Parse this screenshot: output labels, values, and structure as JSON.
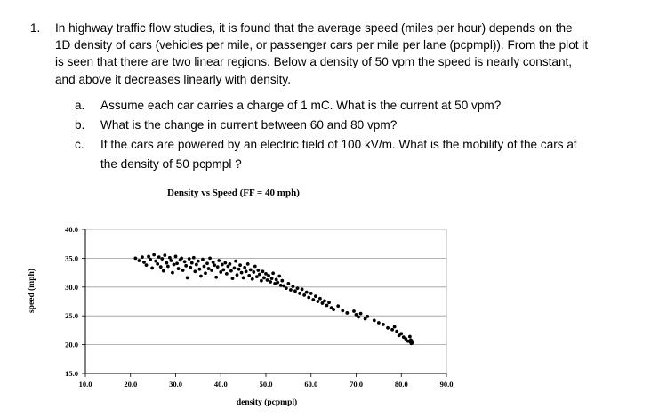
{
  "problem": {
    "number": "1.",
    "lines": [
      "In highway traffic flow studies, it is found that the average speed (miles per hour) depends on the",
      "1D density of cars (vehicles per mile, or passenger cars per mile per lane (pcpmpl)). From the plot it",
      "is seen that there are two linear regions. Below a density of 50 vpm the speed is nearly constant,",
      "and above it decreases linearly with density."
    ],
    "parts": [
      {
        "letter": "a.",
        "lines": [
          "Assume each car carries a charge of 1 mC. What is the current at 50 vpm?"
        ]
      },
      {
        "letter": "b.",
        "lines": [
          "What is the change in current between 60 and 80 vpm?"
        ]
      },
      {
        "letter": "c.",
        "lines": [
          "If the cars are powered by an electric field of 100 kV/m. What is the mobility of the cars at",
          "the density of 50 pcpmpl ?"
        ]
      }
    ]
  },
  "chart_data": {
    "type": "scatter",
    "title": "Density vs Speed (FF = 40 mph)",
    "xlabel": "density (pcpmpl)",
    "ylabel": "speed (mph)",
    "xlim": [
      10,
      90
    ],
    "ylim": [
      15,
      40
    ],
    "xticks": [
      "10.0",
      "20.0",
      "30.0",
      "40.0",
      "50.0",
      "60.0",
      "70.0",
      "80.0",
      "90.0"
    ],
    "yticks": [
      "15.0",
      "20.0",
      "25.0",
      "30.0",
      "35.0",
      "40.0"
    ],
    "grid": "horizontal",
    "series": [
      {
        "color": "#000000",
        "points": [
          [
            21.1,
            35.0
          ],
          [
            21.9,
            34.6
          ],
          [
            22.6,
            35.2
          ],
          [
            23.0,
            34.3
          ],
          [
            23.5,
            33.8
          ],
          [
            24.0,
            35.3
          ],
          [
            24.4,
            34.8
          ],
          [
            24.8,
            33.3
          ],
          [
            25.2,
            35.6
          ],
          [
            25.6,
            34.5
          ],
          [
            26.0,
            34.0
          ],
          [
            26.3,
            35.2
          ],
          [
            26.7,
            33.5
          ],
          [
            27.0,
            34.9
          ],
          [
            27.3,
            32.8
          ],
          [
            27.6,
            35.5
          ],
          [
            28.0,
            34.2
          ],
          [
            28.3,
            33.6
          ],
          [
            28.7,
            35.1
          ],
          [
            29.0,
            34.6
          ],
          [
            29.3,
            32.5
          ],
          [
            29.6,
            33.9
          ],
          [
            30.0,
            35.3
          ],
          [
            30.3,
            34.1
          ],
          [
            30.6,
            33.2
          ],
          [
            31.0,
            34.7
          ],
          [
            31.3,
            35.0
          ],
          [
            31.6,
            32.9
          ],
          [
            32.0,
            34.4
          ],
          [
            32.3,
            33.7
          ],
          [
            32.6,
            31.6
          ],
          [
            33.0,
            34.9
          ],
          [
            33.3,
            33.4
          ],
          [
            33.6,
            34.2
          ],
          [
            34.0,
            35.1
          ],
          [
            34.3,
            32.7
          ],
          [
            34.6,
            33.9
          ],
          [
            35.0,
            34.5
          ],
          [
            35.3,
            33.1
          ],
          [
            35.6,
            31.9
          ],
          [
            36.0,
            34.8
          ],
          [
            36.3,
            33.6
          ],
          [
            36.6,
            32.4
          ],
          [
            37.0,
            34.1
          ],
          [
            37.3,
            33.2
          ],
          [
            37.6,
            35.0
          ],
          [
            38.0,
            32.9
          ],
          [
            38.3,
            34.3
          ],
          [
            38.6,
            33.8
          ],
          [
            39.0,
            31.7
          ],
          [
            39.3,
            33.5
          ],
          [
            39.6,
            34.6
          ],
          [
            40.0,
            32.6
          ],
          [
            40.3,
            33.9
          ],
          [
            40.6,
            33.0
          ],
          [
            41.0,
            34.2
          ],
          [
            41.3,
            32.3
          ],
          [
            41.6,
            33.6
          ],
          [
            42.0,
            34.0
          ],
          [
            42.3,
            32.8
          ],
          [
            42.6,
            31.5
          ],
          [
            43.0,
            33.3
          ],
          [
            43.3,
            34.5
          ],
          [
            43.6,
            32.1
          ],
          [
            44.0,
            33.1
          ],
          [
            44.3,
            33.8
          ],
          [
            44.6,
            32.5
          ],
          [
            45.0,
            31.6
          ],
          [
            45.3,
            33.4
          ],
          [
            45.6,
            32.7
          ],
          [
            46.0,
            34.0
          ],
          [
            46.3,
            32.0
          ],
          [
            46.6,
            33.0
          ],
          [
            47.0,
            31.4
          ],
          [
            47.3,
            32.6
          ],
          [
            47.6,
            33.6
          ],
          [
            48.0,
            31.8
          ],
          [
            48.3,
            32.9
          ],
          [
            48.6,
            32.2
          ],
          [
            49.0,
            31.1
          ],
          [
            49.3,
            32.7
          ],
          [
            49.6,
            31.6
          ],
          [
            50.0,
            32.3
          ],
          [
            50.3,
            31.2
          ],
          [
            50.6,
            32.0
          ],
          [
            51.0,
            30.9
          ],
          [
            51.3,
            31.5
          ],
          [
            51.6,
            32.4
          ],
          [
            52.0,
            30.6
          ],
          [
            52.3,
            31.3
          ],
          [
            52.6,
            30.8
          ],
          [
            53.0,
            31.9
          ],
          [
            53.3,
            30.3
          ],
          [
            53.6,
            31.1
          ],
          [
            54.0,
            30.2
          ],
          [
            54.5,
            29.8
          ],
          [
            55.0,
            30.6
          ],
          [
            55.5,
            29.5
          ],
          [
            56.0,
            30.1
          ],
          [
            56.5,
            29.3
          ],
          [
            57.0,
            29.8
          ],
          [
            57.5,
            28.9
          ],
          [
            58.0,
            29.6
          ],
          [
            58.5,
            28.6
          ],
          [
            59.0,
            29.1
          ],
          [
            59.5,
            28.2
          ],
          [
            60.0,
            28.9
          ],
          [
            60.5,
            27.8
          ],
          [
            61.0,
            28.4
          ],
          [
            61.5,
            27.5
          ],
          [
            62.0,
            28.0
          ],
          [
            62.5,
            27.2
          ],
          [
            63.0,
            27.6
          ],
          [
            63.5,
            26.8
          ],
          [
            64.0,
            27.3
          ],
          [
            64.5,
            26.4
          ],
          [
            65.0,
            26.1
          ],
          [
            66.0,
            26.7
          ],
          [
            67.0,
            25.9
          ],
          [
            68.0,
            25.5
          ],
          [
            69.5,
            25.8
          ],
          [
            70.0,
            25.2
          ],
          [
            70.5,
            24.8
          ],
          [
            71.0,
            25.4
          ],
          [
            72.0,
            24.5
          ],
          [
            72.5,
            24.9
          ],
          [
            74.0,
            24.2
          ],
          [
            75.0,
            23.8
          ],
          [
            76.0,
            23.5
          ],
          [
            77.0,
            22.9
          ],
          [
            78.0,
            22.6
          ],
          [
            78.5,
            23.1
          ],
          [
            79.0,
            22.3
          ],
          [
            79.5,
            21.6
          ],
          [
            80.0,
            21.9
          ],
          [
            80.5,
            21.3
          ],
          [
            81.0,
            21.0
          ],
          [
            81.5,
            20.6
          ],
          [
            81.9,
            21.4
          ],
          [
            82.0,
            20.5
          ],
          [
            82.1,
            20.8
          ],
          [
            82.2,
            20.2
          ],
          [
            82.3,
            20.6
          ],
          [
            82.4,
            20.3
          ]
        ]
      }
    ]
  }
}
